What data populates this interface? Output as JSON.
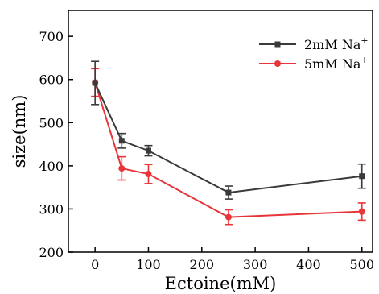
{
  "chart_data": {
    "type": "line",
    "xlabel": "Ectoine(mM)",
    "ylabel": "size(nm)",
    "xlim": [
      -50,
      520
    ],
    "ylim": [
      200,
      760
    ],
    "x_ticks": [
      0,
      100,
      200,
      300,
      400,
      500
    ],
    "y_ticks": [
      200,
      300,
      400,
      500,
      600,
      700
    ],
    "grid": false,
    "legend_position": "top-right",
    "series": [
      {
        "name": "2mM Na+",
        "legend_base": "2mM Na",
        "legend_sup": "+",
        "color": "#3a3a3a",
        "marker": "square",
        "x": [
          0,
          50,
          100,
          250,
          500
        ],
        "y": [
          592,
          458,
          435,
          338,
          376
        ],
        "err": [
          50,
          17,
          12,
          15,
          28
        ]
      },
      {
        "name": "5mM Na+",
        "legend_base": "5mM Na",
        "legend_sup": "+",
        "color": "#e8353a",
        "marker": "circle",
        "x": [
          0,
          50,
          100,
          250,
          500
        ],
        "y": [
          593,
          394,
          381,
          281,
          294
        ],
        "err": [
          32,
          27,
          22,
          17,
          20
        ]
      }
    ]
  }
}
